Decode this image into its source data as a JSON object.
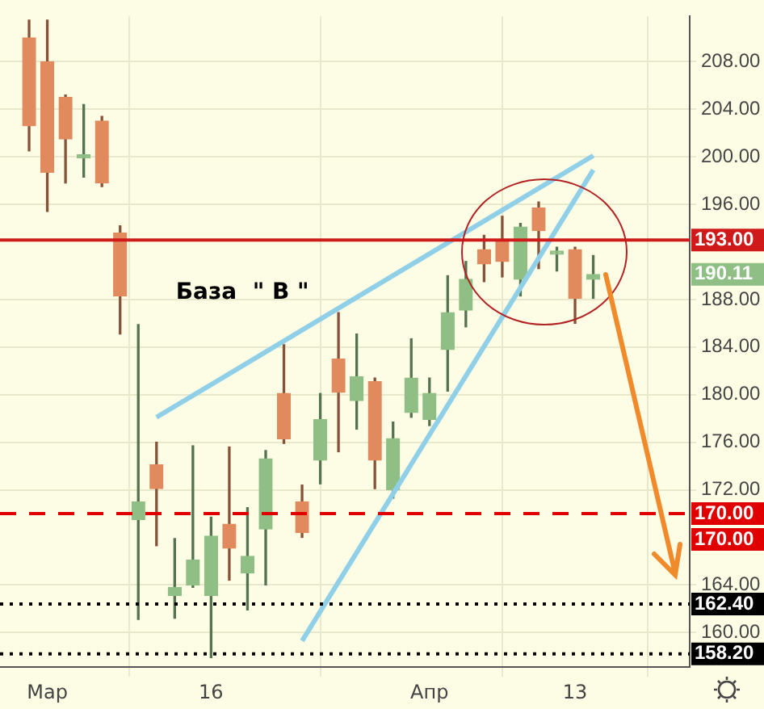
{
  "chart_data": {
    "type": "candlestick",
    "categories": [
      null,
      "Мар",
      null,
      null,
      null,
      null,
      null,
      null,
      null,
      null,
      "16",
      null,
      null,
      null,
      null,
      null,
      null,
      null,
      null,
      null,
      null,
      null,
      "Апр",
      null,
      null,
      null,
      null,
      null,
      null,
      null,
      "13",
      null
    ],
    "ohlc": [
      [
        210.0,
        211.5,
        200.5,
        202.6
      ],
      [
        208.0,
        211.5,
        195.4,
        198.7
      ],
      [
        205.0,
        205.2,
        197.8,
        201.5
      ],
      [
        199.9,
        204.4,
        198.3,
        199.9
      ],
      [
        203.0,
        203.4,
        197.5,
        197.8
      ],
      [
        193.6,
        194.2,
        185.1,
        188.3
      ],
      [
        169.5,
        185.9,
        161.1,
        171.0
      ],
      [
        174.1,
        176.0,
        167.3,
        172.1
      ],
      [
        163.1,
        167.9,
        161.2,
        163.8
      ],
      [
        164.0,
        175.7,
        163.8,
        166.1
      ],
      [
        163.1,
        169.7,
        157.9,
        168.1
      ],
      [
        169.1,
        175.6,
        164.4,
        167.1
      ],
      [
        165.0,
        170.5,
        161.9,
        166.4
      ],
      [
        168.7,
        175.3,
        164.0,
        174.6
      ],
      [
        180.1,
        184.2,
        175.9,
        176.3
      ],
      [
        171.0,
        172.4,
        168.0,
        168.4
      ],
      [
        174.5,
        180.1,
        172.5,
        177.9
      ],
      [
        183.0,
        186.9,
        175.2,
        180.2
      ],
      [
        179.5,
        185.1,
        177.1,
        181.5
      ],
      [
        181.1,
        181.4,
        172.1,
        174.5
      ],
      [
        172.0,
        177.7,
        171.3,
        176.3
      ],
      [
        178.5,
        184.7,
        178.1,
        181.4
      ],
      [
        177.9,
        181.4,
        177.4,
        180.1
      ],
      [
        183.8,
        190.0,
        180.3,
        186.9
      ],
      [
        187.1,
        191.2,
        185.7,
        189.7
      ],
      [
        192.2,
        193.4,
        189.5,
        191.0
      ],
      [
        193.0,
        195.0,
        189.9,
        191.2
      ],
      [
        189.7,
        194.4,
        188.3,
        194.1
      ],
      [
        195.7,
        196.2,
        190.6,
        193.8
      ],
      [
        191.8,
        192.4,
        190.4,
        191.9
      ],
      [
        192.2,
        192.4,
        186.0,
        188.1
      ],
      [
        189.7,
        191.7,
        188.1,
        190.11
      ]
    ],
    "colors": [
      "#e08a5e",
      "#e08a5e",
      "#e08a5e",
      "#8fbf85",
      "#e08a5e",
      "#e08a5e",
      "#8fbf85",
      "#e08a5e",
      "#8fbf85",
      "#8fbf85",
      "#8fbf85",
      "#e08a5e",
      "#8fbf85",
      "#8fbf85",
      "#e08a5e",
      "#e08a5e",
      "#8fbf85",
      "#e08a5e",
      "#8fbf85",
      "#e08a5e",
      "#8fbf85",
      "#8fbf85",
      "#8fbf85",
      "#8fbf85",
      "#8fbf85",
      "#e08a5e",
      "#e08a5e",
      "#8fbf85",
      "#e08a5e",
      "#8fbf85",
      "#e08a5e",
      "#8fbf85"
    ],
    "series": [
      {
        "type": "line",
        "color": "#8fd0e8",
        "values": [
          null,
          null,
          null,
          null,
          null,
          null,
          null,
          178.1,
          null,
          null,
          null,
          null,
          null,
          null,
          null,
          null,
          null,
          null,
          null,
          null,
          null,
          null,
          null,
          null,
          null,
          null,
          null,
          null,
          null,
          null,
          null,
          200.1
        ]
      },
      {
        "type": "line",
        "color": "#8fd0e8",
        "values": [
          null,
          null,
          null,
          null,
          null,
          null,
          null,
          null,
          null,
          null,
          null,
          null,
          null,
          null,
          null,
          159.3,
          null,
          null,
          null,
          null,
          null,
          null,
          null,
          null,
          null,
          null,
          null,
          null,
          null,
          null,
          null,
          198.9
        ]
      }
    ],
    "ylim": [
      157.1,
      211.8
    ],
    "yticks": [
      {
        "value": 160,
        "label": "160.00"
      },
      {
        "value": 164,
        "label": "164.00"
      },
      {
        "value": 172,
        "label": "172.00"
      },
      {
        "value": 176,
        "label": "176.00"
      },
      {
        "value": 180,
        "label": "180.00"
      },
      {
        "value": 184,
        "label": "184.00"
      },
      {
        "value": 188,
        "label": "188.00"
      },
      {
        "value": 196,
        "label": "196.00"
      },
      {
        "value": 200,
        "label": "200.00"
      },
      {
        "value": 204,
        "label": "204.00"
      },
      {
        "value": 208,
        "label": "208.00"
      }
    ],
    "grid": true,
    "ref_lines": [
      {
        "axis": "y",
        "value": 193,
        "label": "193.00",
        "color": "#d01a1a",
        "line_style": "solid"
      },
      {
        "axis": "y",
        "value": 170,
        "label": "170.00",
        "color": "#e00000",
        "line_style": "dashed"
      },
      {
        "axis": "y",
        "value": 162.4,
        "label": "162.40",
        "color": "#000000",
        "line_style": "dotted"
      },
      {
        "axis": "y",
        "value": 158.2,
        "label": "158.20",
        "color": "#000000",
        "line_style": "dotted"
      }
    ],
    "annotations": [
      "База  \" В \"",
      "190.11",
      "170.00"
    ]
  }
}
